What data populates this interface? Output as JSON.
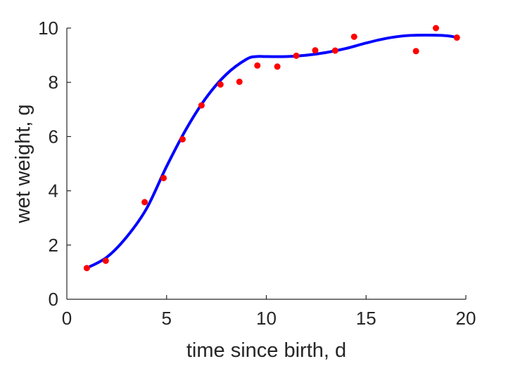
{
  "chart_data": {
    "type": "scatter",
    "xlabel": "time since birth, d",
    "ylabel": "wet weight, g",
    "xlim": [
      0,
      20
    ],
    "ylim": [
      0,
      10
    ],
    "xticks": [
      "0",
      "5",
      "10",
      "15",
      "20"
    ],
    "yticks": [
      "0",
      "2",
      "4",
      "6",
      "8",
      "10"
    ],
    "grid": false,
    "series": [
      {
        "kind": "points",
        "color": "#ff0000",
        "points": [
          [
            1.0,
            1.15
          ],
          [
            1.95,
            1.42
          ],
          [
            3.9,
            3.58
          ],
          [
            4.85,
            4.47
          ],
          [
            5.8,
            5.9
          ],
          [
            6.75,
            7.15
          ],
          [
            7.7,
            7.92
          ],
          [
            8.65,
            8.02
          ],
          [
            9.55,
            8.62
          ],
          [
            10.55,
            8.58
          ],
          [
            11.5,
            8.98
          ],
          [
            12.45,
            9.18
          ],
          [
            13.45,
            9.17
          ],
          [
            14.4,
            9.68
          ],
          [
            17.5,
            9.15
          ],
          [
            18.5,
            10.0
          ],
          [
            19.55,
            9.65
          ]
        ]
      },
      {
        "kind": "fit-line",
        "color": "#0000ff",
        "points": [
          [
            1.0,
            1.15
          ],
          [
            2.0,
            1.55
          ],
          [
            3.0,
            2.3
          ],
          [
            4.0,
            3.35
          ],
          [
            5.0,
            4.9
          ],
          [
            6.0,
            6.3
          ],
          [
            7.0,
            7.45
          ],
          [
            8.0,
            8.3
          ],
          [
            9.0,
            8.85
          ],
          [
            9.5,
            8.95
          ],
          [
            10.0,
            8.95
          ],
          [
            11.0,
            8.95
          ],
          [
            12.0,
            9.0
          ],
          [
            13.0,
            9.1
          ],
          [
            14.0,
            9.25
          ],
          [
            15.0,
            9.45
          ],
          [
            16.0,
            9.62
          ],
          [
            17.0,
            9.72
          ],
          [
            18.0,
            9.74
          ],
          [
            19.0,
            9.72
          ],
          [
            19.6,
            9.65
          ]
        ]
      }
    ]
  }
}
